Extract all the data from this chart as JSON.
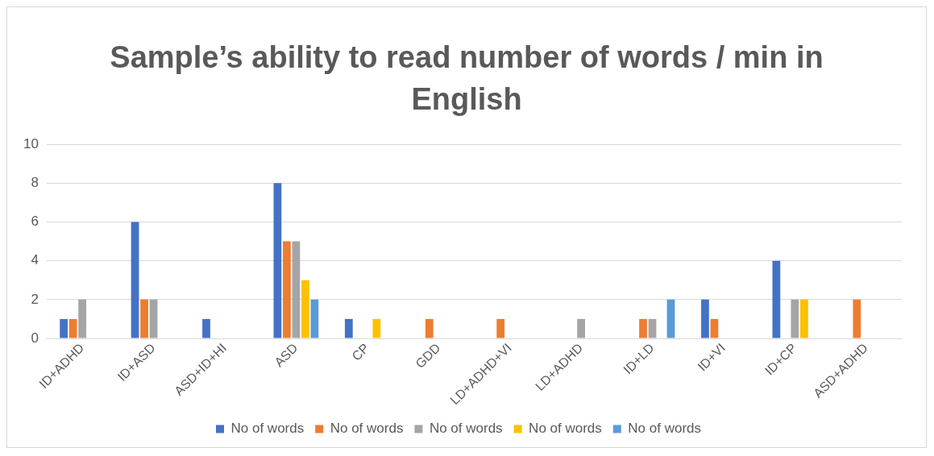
{
  "chart_data": {
    "type": "bar",
    "title": "Sample’s ability to read number of words / min in English",
    "categories": [
      "ID+ADHD",
      "ID+ASD",
      "ASD+ID+HI",
      "ASD",
      "CP",
      "GDD",
      "LD+ADHD+VI",
      "LD+ADHD",
      "ID+LD",
      "ID+VI",
      "ID+CP",
      "ASD+ADHD"
    ],
    "series": [
      {
        "name": "No of words",
        "color": "#4472c4",
        "values": [
          1,
          6,
          1,
          8,
          1,
          null,
          null,
          null,
          null,
          2,
          4,
          null
        ]
      },
      {
        "name": "No of words",
        "color": "#ed7d31",
        "values": [
          1,
          2,
          null,
          5,
          null,
          1,
          1,
          null,
          1,
          1,
          null,
          2
        ]
      },
      {
        "name": "No of words",
        "color": "#a5a5a5",
        "values": [
          2,
          2,
          null,
          5,
          null,
          null,
          null,
          1,
          1,
          null,
          2,
          null
        ]
      },
      {
        "name": "No of words",
        "color": "#ffc000",
        "values": [
          null,
          null,
          null,
          3,
          1,
          null,
          null,
          null,
          null,
          null,
          2,
          null
        ]
      },
      {
        "name": "No of words",
        "color": "#5b9bd5",
        "values": [
          null,
          null,
          null,
          2,
          null,
          null,
          null,
          null,
          2,
          null,
          null,
          null
        ]
      }
    ],
    "ylim": [
      0,
      10
    ],
    "yticks": [
      0,
      2,
      4,
      6,
      8,
      10
    ],
    "grid": "y",
    "legend": "bottom"
  }
}
